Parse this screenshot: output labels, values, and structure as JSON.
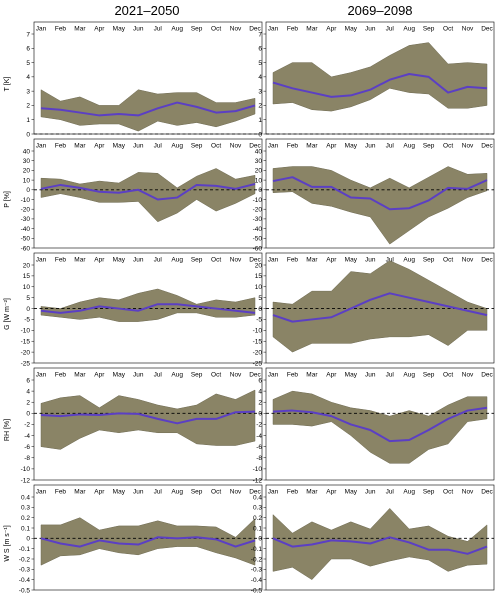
{
  "column_titles": [
    "2021–2050",
    "2069–2098"
  ],
  "chart_data": {
    "type": "area",
    "categories": [
      "Jan",
      "Feb",
      "Mar",
      "Apr",
      "May",
      "Jun",
      "Jul",
      "Aug",
      "Sep",
      "Oct",
      "Nov",
      "Dec"
    ],
    "colors": {
      "band": "#8a8466",
      "mean": "#5b3fc4"
    },
    "rows": [
      {
        "ylabel": "T [K]",
        "ylim": [
          0,
          7
        ],
        "yticks": [
          0,
          1,
          2,
          3,
          4,
          5,
          6,
          7
        ],
        "panels": [
          {
            "period": "2021–2050",
            "mean": [
              1.8,
              1.7,
              1.5,
              1.3,
              1.4,
              1.3,
              1.8,
              2.2,
              1.9,
              1.5,
              1.6,
              2.0
            ],
            "lower": [
              1.2,
              1.0,
              0.6,
              0.7,
              0.7,
              0.2,
              0.9,
              0.6,
              0.8,
              0.5,
              0.9,
              1.4
            ],
            "upper": [
              3.1,
              2.3,
              2.6,
              2.0,
              2.0,
              3.1,
              2.8,
              2.9,
              2.9,
              2.2,
              2.2,
              2.5
            ]
          },
          {
            "period": "2069–2098",
            "mean": [
              3.6,
              3.2,
              2.9,
              2.6,
              2.7,
              3.1,
              3.8,
              4.2,
              4.0,
              2.9,
              3.3,
              3.2
            ],
            "lower": [
              2.1,
              2.2,
              1.7,
              1.6,
              1.9,
              2.4,
              3.2,
              2.9,
              2.8,
              1.8,
              1.8,
              2.0
            ],
            "upper": [
              4.3,
              5.0,
              5.0,
              4.0,
              4.3,
              4.7,
              5.5,
              6.2,
              6.4,
              4.9,
              5.0,
              4.9
            ]
          }
        ]
      },
      {
        "ylabel": "P [%]",
        "ylim": [
          -60,
          40
        ],
        "yticks": [
          -60,
          -50,
          -40,
          -30,
          -20,
          -10,
          0,
          10,
          20,
          30,
          40
        ],
        "panels": [
          {
            "period": "2021–2050",
            "mean": [
              1,
              5,
              2,
              -2,
              -3,
              0,
              -10,
              -8,
              5,
              4,
              1,
              6
            ],
            "lower": [
              -8,
              -4,
              -8,
              -13,
              -13,
              -12,
              -33,
              -24,
              -10,
              -22,
              -14,
              -4
            ],
            "upper": [
              12,
              11,
              6,
              9,
              7,
              18,
              17,
              2,
              14,
              22,
              11,
              15
            ]
          },
          {
            "period": "2069–2098",
            "mean": [
              9,
              13,
              3,
              3,
              -8,
              -9,
              -20,
              -19,
              -11,
              2,
              1,
              10
            ],
            "lower": [
              -3,
              -2,
              -14,
              -17,
              -23,
              -28,
              -56,
              -42,
              -28,
              -19,
              -8,
              -1
            ],
            "upper": [
              22,
              24,
              24,
              20,
              10,
              2,
              12,
              2,
              13,
              24,
              16,
              17
            ]
          }
        ]
      },
      {
        "ylabel": "G [W m⁻²]",
        "ylim": [
          -25,
          20
        ],
        "yticks": [
          -25,
          -20,
          -15,
          -10,
          -5,
          0,
          5,
          10,
          15,
          20
        ],
        "panels": [
          {
            "period": "2021–2050",
            "mean": [
              -1,
              -2,
              -1,
              1,
              0,
              -1,
              2,
              2,
              1,
              0,
              -1,
              -2
            ],
            "lower": [
              -3,
              -4,
              -5,
              -4,
              -6,
              -6,
              -5,
              -2,
              -2,
              -4,
              -4,
              -3
            ],
            "upper": [
              1,
              0,
              3,
              5,
              4,
              7,
              9,
              6,
              2,
              4,
              3,
              5
            ]
          },
          {
            "period": "2069–2098",
            "mean": [
              -3,
              -6,
              -5,
              -4,
              0,
              4,
              7,
              5,
              3,
              1,
              -1,
              -3
            ],
            "lower": [
              -13,
              -20,
              -16,
              -16,
              -16,
              -14,
              -13,
              -13,
              -12,
              -17,
              -10,
              -10
            ],
            "upper": [
              3,
              2,
              8,
              8,
              17,
              16,
              22,
              18,
              13,
              8,
              3,
              0
            ]
          }
        ]
      },
      {
        "ylabel": "RH [%]",
        "ylim": [
          -12,
          6
        ],
        "yticks": [
          -12,
          -10,
          -8,
          -6,
          -4,
          -2,
          0,
          2,
          4,
          6
        ],
        "panels": [
          {
            "period": "2021–2050",
            "mean": [
              -0.3,
              -0.5,
              -0.2,
              -0.3,
              0.0,
              -0.1,
              -1.0,
              -1.8,
              -1.0,
              -1.0,
              0.2,
              0.3
            ],
            "lower": [
              -6.0,
              -6.5,
              -4.5,
              -3.0,
              -3.5,
              -3.0,
              -3.5,
              -3.5,
              -5.5,
              -5.8,
              -5.8,
              -5.0
            ],
            "upper": [
              1.8,
              2.8,
              3.2,
              1.0,
              3.2,
              2.5,
              1.5,
              0.8,
              1.5,
              3.5,
              2.5,
              4.2
            ]
          },
          {
            "period": "2069–2098",
            "mean": [
              0.3,
              0.5,
              0.2,
              -0.5,
              -2.0,
              -3.0,
              -5.0,
              -4.8,
              -3.0,
              -1.0,
              0.5,
              1.0
            ],
            "lower": [
              -2.0,
              -2.0,
              -2.3,
              -1.5,
              -4.0,
              -7.0,
              -9.0,
              -9.0,
              -6.5,
              -5.5,
              -1.5,
              -1.0
            ],
            "upper": [
              2.5,
              4.0,
              3.5,
              2.0,
              1.0,
              0.5,
              -0.5,
              0.5,
              -0.5,
              1.5,
              3.0,
              3.0
            ]
          }
        ]
      },
      {
        "ylabel": "W S [m s⁻¹]",
        "ylim": [
          -0.5,
          0.4
        ],
        "yticks": [
          -0.5,
          -0.4,
          -0.3,
          -0.2,
          -0.1,
          0.0,
          0.1,
          0.2,
          0.3,
          0.4
        ],
        "panels": [
          {
            "period": "2021–2050",
            "mean": [
              0.0,
              -0.05,
              -0.08,
              -0.02,
              -0.05,
              -0.06,
              0.01,
              0.0,
              0.01,
              -0.01,
              -0.08,
              -0.02
            ],
            "lower": [
              -0.26,
              -0.17,
              -0.16,
              -0.1,
              -0.14,
              -0.16,
              -0.1,
              -0.08,
              -0.08,
              -0.14,
              -0.19,
              -0.26
            ],
            "upper": [
              0.13,
              0.13,
              0.2,
              0.08,
              0.12,
              0.12,
              0.17,
              0.12,
              0.12,
              0.11,
              0.01,
              0.19
            ]
          },
          {
            "period": "2069–2098",
            "mean": [
              0.0,
              -0.08,
              -0.06,
              -0.02,
              -0.03,
              -0.05,
              0.01,
              -0.04,
              -0.11,
              -0.11,
              -0.15,
              -0.08
            ],
            "lower": [
              -0.32,
              -0.28,
              -0.4,
              -0.2,
              -0.2,
              -0.27,
              -0.22,
              -0.18,
              -0.21,
              -0.32,
              -0.26,
              -0.25
            ],
            "upper": [
              0.23,
              0.05,
              0.16,
              0.08,
              0.16,
              0.09,
              0.29,
              0.09,
              0.12,
              0.02,
              -0.03,
              0.13
            ]
          }
        ]
      }
    ]
  }
}
